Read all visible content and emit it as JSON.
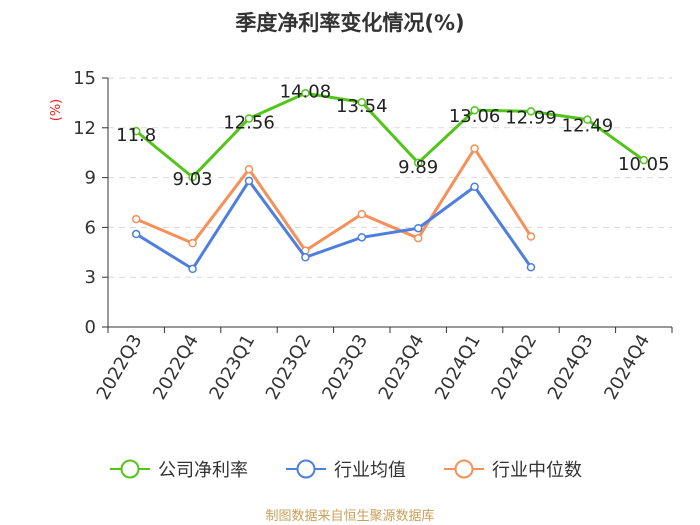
{
  "chart_data": {
    "type": "line",
    "title": "季度净利率变化情况(%)",
    "ylabel": "(%)",
    "categories": [
      "2022Q3",
      "2022Q4",
      "2023Q1",
      "2023Q2",
      "2023Q3",
      "2023Q4",
      "2024Q1",
      "2024Q2",
      "2024Q3",
      "2024Q4"
    ],
    "ylim": [
      0,
      15
    ],
    "yticks": [
      "0",
      "3",
      "6",
      "9",
      "12",
      "15"
    ],
    "grid": true,
    "legend_position": "bottom",
    "series": [
      {
        "name": "公司净利率",
        "color": "#52c41a",
        "values": [
          11.8,
          9.03,
          12.56,
          14.08,
          13.54,
          9.89,
          13.06,
          12.99,
          12.49,
          10.05
        ],
        "labels": [
          "11.8",
          "9.03",
          "12.56",
          "14.08",
          "13.54",
          "9.89",
          "13.06",
          "12.99",
          "12.49",
          "10.05"
        ]
      },
      {
        "name": "行业均值",
        "color": "#4e7fdc",
        "values": [
          5.6,
          3.5,
          8.8,
          4.2,
          5.4,
          5.95,
          8.45,
          3.6,
          null,
          null
        ]
      },
      {
        "name": "行业中位数",
        "color": "#f6905a",
        "values": [
          6.5,
          5.05,
          9.5,
          4.6,
          6.8,
          5.35,
          10.75,
          5.45,
          null,
          null
        ]
      }
    ]
  },
  "source": "制图数据来自恒生聚源数据库"
}
